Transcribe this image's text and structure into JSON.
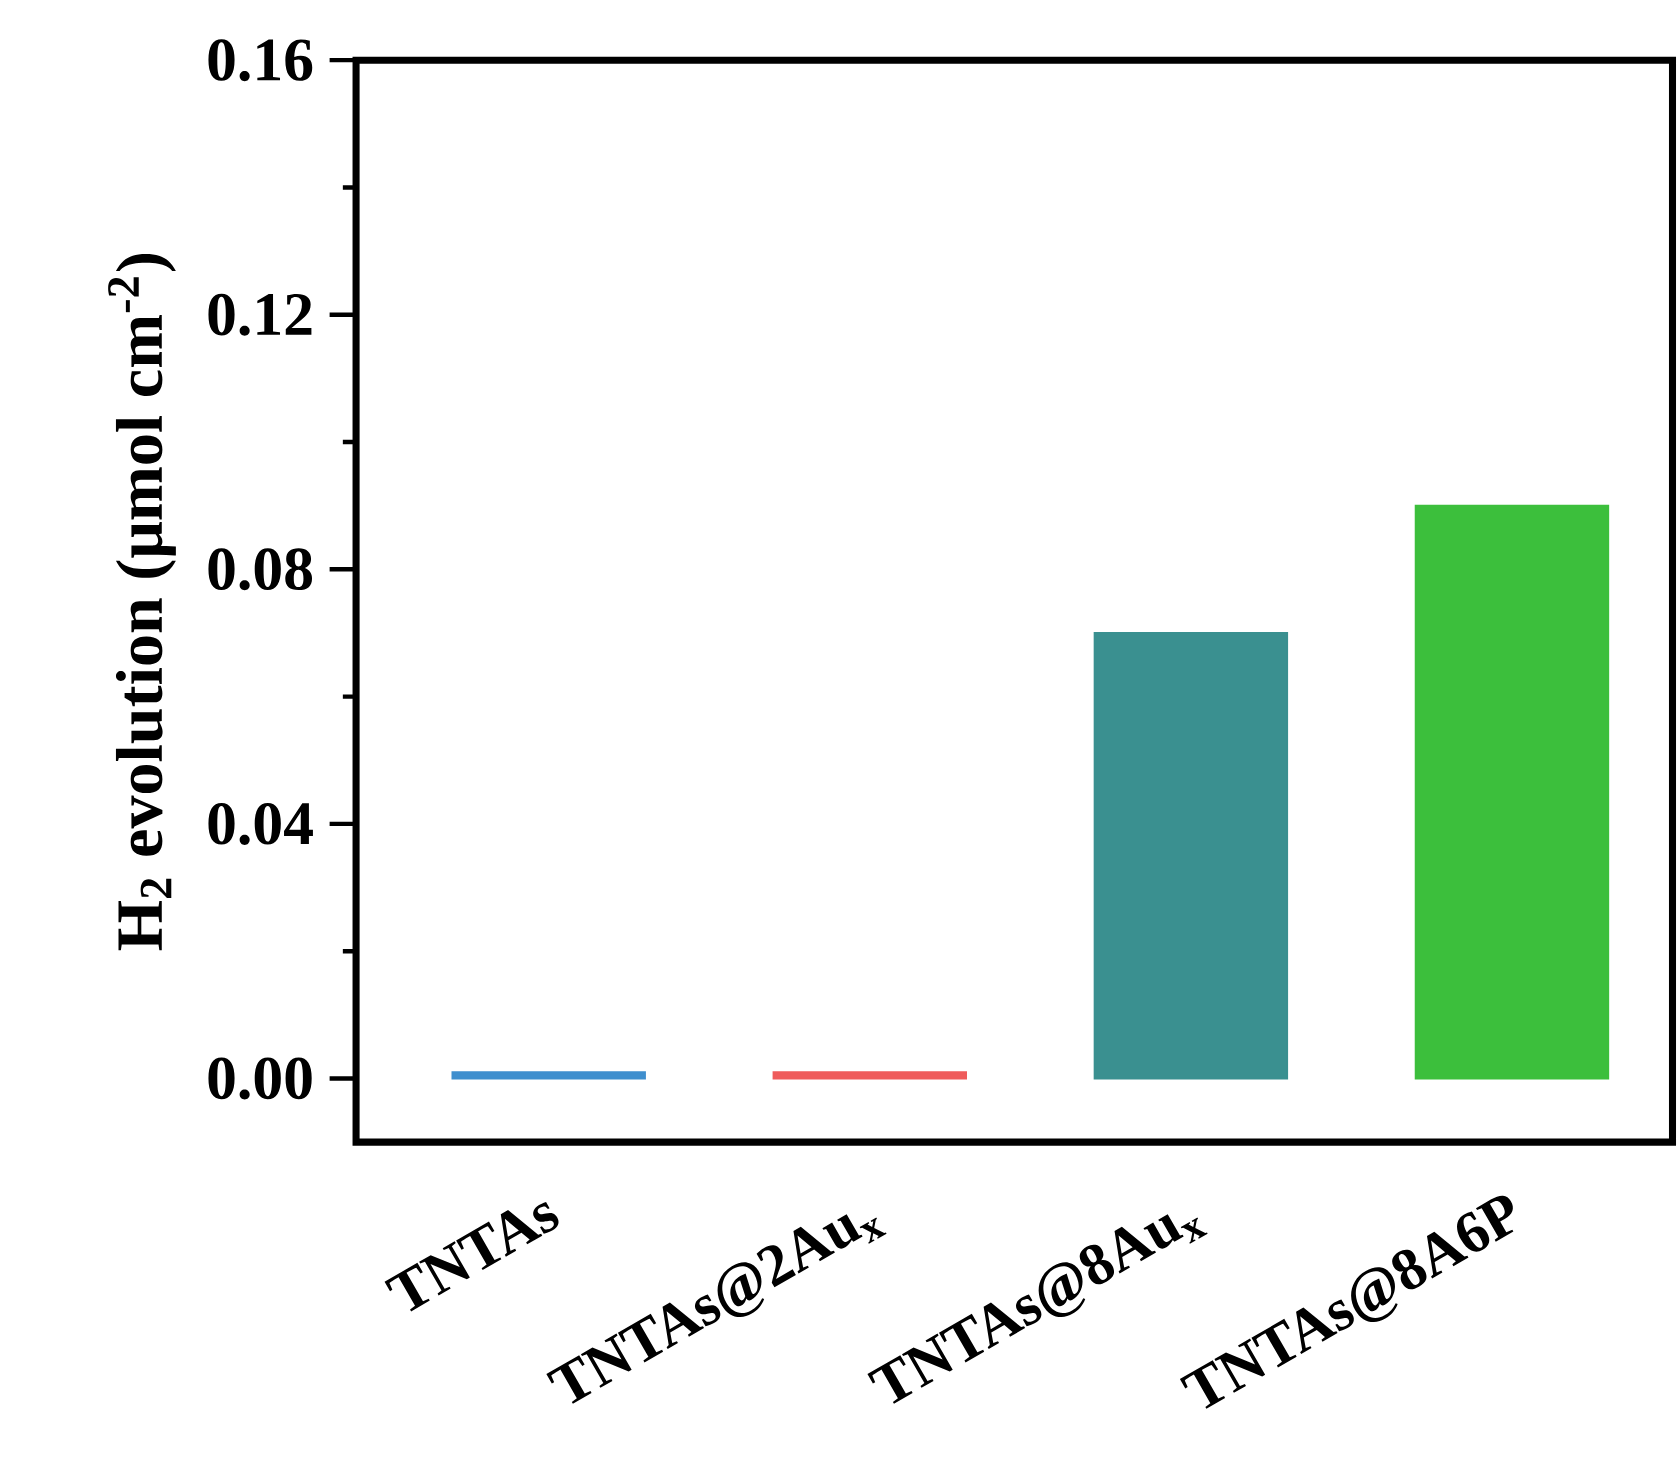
{
  "chart_data": {
    "type": "bar",
    "ylabel": "H$_{2}$ evolution (μmol cm$^{-2}$)",
    "categories": [
      "TNTAs",
      "TNTAs@2Au$_{x}$",
      "TNTAs@8Au$_{x}$",
      "TNTAs@8A6P"
    ],
    "values": [
      0.001,
      0.001,
      0.07,
      0.09
    ],
    "colors": [
      "#3f8fce",
      "#ef5b5b",
      "#3a9090",
      "#3cbf3c"
    ],
    "ylim": [
      -0.01,
      0.16
    ],
    "yticks": [
      {
        "value": 0,
        "label": "0.00"
      },
      0.04,
      0.08,
      0.12,
      0.16
    ],
    "grid": false
  }
}
